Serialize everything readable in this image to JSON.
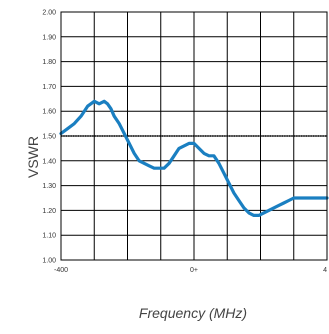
{
  "chart_data": {
    "type": "line",
    "title": "",
    "xlabel": "Frequency (MHz)",
    "ylabel": "VSWR",
    "xlim": [
      -400,
      400
    ],
    "ylim": [
      1.0,
      2.0
    ],
    "grid": true,
    "x_tick_labels": [
      "-400",
      "0+",
      "4"
    ],
    "y_tick_labels": [
      "1.00",
      "1.10",
      "1.20",
      "1.30",
      "1.40",
      "1.50",
      "1.60",
      "1.70",
      "1.80",
      "1.90",
      "2.00"
    ],
    "y_ticks": [
      1.0,
      1.1,
      1.2,
      1.3,
      1.4,
      1.5,
      1.6,
      1.7,
      1.8,
      1.9,
      2.0
    ],
    "reference_line": {
      "y": 1.5,
      "style": "dotted"
    },
    "series": [
      {
        "color": "#1a7fc1",
        "x": [
          -400,
          -380,
          -360,
          -340,
          -320,
          -300,
          -285,
          -270,
          -260,
          -250,
          -240,
          -225,
          -210,
          -195,
          -180,
          -165,
          -150,
          -135,
          -120,
          -105,
          -90,
          -75,
          -60,
          -45,
          -30,
          -15,
          0,
          15,
          30,
          45,
          60,
          75,
          90,
          105,
          120,
          135,
          150,
          165,
          180,
          195,
          210,
          225,
          240,
          255,
          270,
          285,
          300,
          315,
          330,
          345,
          360,
          375,
          390,
          400
        ],
        "y": [
          1.51,
          1.53,
          1.55,
          1.58,
          1.62,
          1.64,
          1.63,
          1.64,
          1.63,
          1.61,
          1.58,
          1.55,
          1.51,
          1.47,
          1.43,
          1.4,
          1.39,
          1.38,
          1.37,
          1.37,
          1.37,
          1.39,
          1.42,
          1.45,
          1.46,
          1.47,
          1.47,
          1.45,
          1.43,
          1.42,
          1.42,
          1.39,
          1.35,
          1.31,
          1.27,
          1.24,
          1.21,
          1.19,
          1.18,
          1.18,
          1.19,
          1.2,
          1.21,
          1.22,
          1.23,
          1.24,
          1.25,
          1.25,
          1.25,
          1.25,
          1.25,
          1.25,
          1.25,
          1.25
        ]
      }
    ]
  }
}
